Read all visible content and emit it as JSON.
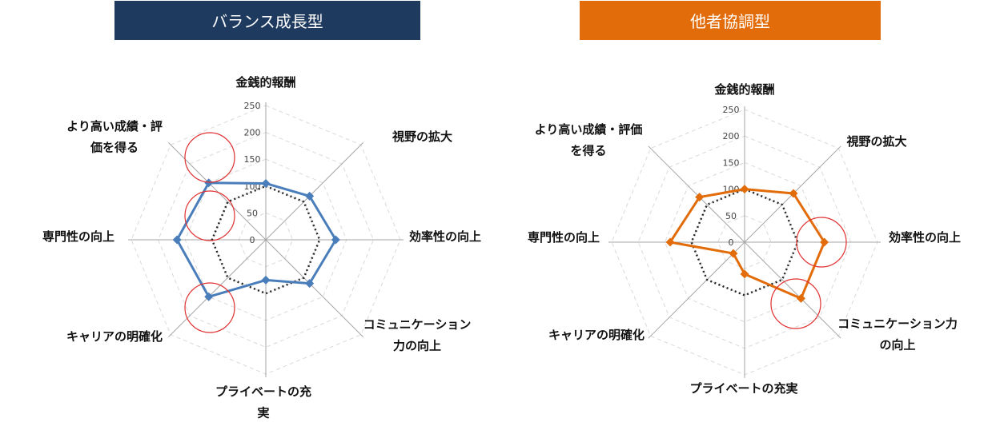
{
  "colors": {
    "left_header": "#1f3a5f",
    "right_header": "#e36c0a",
    "left_series": "#4a7ebb",
    "right_series": "#e36c0a",
    "baseline": "#262626",
    "highlight_circle": "#e03030"
  },
  "chart_data": [
    {
      "type": "radar",
      "title": "バランス成長型",
      "axes": [
        "金銭的報酬",
        "視野の拡大",
        "効率性の向上",
        "コミュニケーション力の向上",
        "プライベートの充実",
        "キャリアの明確化",
        "専門性の向上",
        "より高い成績・評価を得る"
      ],
      "axis_label_lines": [
        [
          "金銭的報酬"
        ],
        [
          "視野の拡大"
        ],
        [
          "効率性の向上"
        ],
        [
          "コミュニケーション",
          "力の向上"
        ],
        [
          "プライベートの充",
          "実"
        ],
        [
          "キャリアの明確化"
        ],
        [
          "専門性の向上"
        ],
        [
          "より高い成績・評",
          "価を得る"
        ]
      ],
      "r_ticks": [
        0,
        50,
        100,
        150,
        200,
        250
      ],
      "rlim": [
        0,
        250
      ],
      "grid": true,
      "series": [
        {
          "style": "solid-diamond",
          "values": [
            105,
            115,
            130,
            115,
            75,
            150,
            165,
            150
          ]
        },
        {
          "style": "dotted",
          "values": [
            100,
            100,
            100,
            100,
            100,
            100,
            100,
            100
          ]
        }
      ],
      "highlighted_axes": [
        "より高い成績・評価を得る",
        "専門性の向上",
        "キャリアの明確化"
      ]
    },
    {
      "type": "radar",
      "title": "他者協調型",
      "axes": [
        "金銭的報酬",
        "視野の拡大",
        "効率性の向上",
        "コミュニケーション力の向上",
        "プライベートの充実",
        "キャリアの明確化",
        "専門性の向上",
        "より高い成績・評価を得る"
      ],
      "axis_label_lines": [
        [
          "金銭的報酬"
        ],
        [
          "視野の拡大"
        ],
        [
          "効率性の向上"
        ],
        [
          "コミュニケーション力",
          "の向上"
        ],
        [
          "プライベートの充実"
        ],
        [
          "キャリアの明確化"
        ],
        [
          "専門性の向上"
        ],
        [
          "より高い成績・評価",
          "を得る"
        ]
      ],
      "r_ticks": [
        0,
        50,
        100,
        150,
        200,
        250
      ],
      "rlim": [
        0,
        250
      ],
      "grid": true,
      "series": [
        {
          "style": "solid-diamond",
          "values": [
            100,
            130,
            150,
            150,
            60,
            30,
            140,
            120
          ]
        },
        {
          "style": "dotted",
          "values": [
            100,
            100,
            100,
            100,
            100,
            100,
            100,
            100
          ]
        }
      ],
      "highlighted_axes": [
        "効率性の向上",
        "コミュニケーション力の向上"
      ]
    }
  ]
}
